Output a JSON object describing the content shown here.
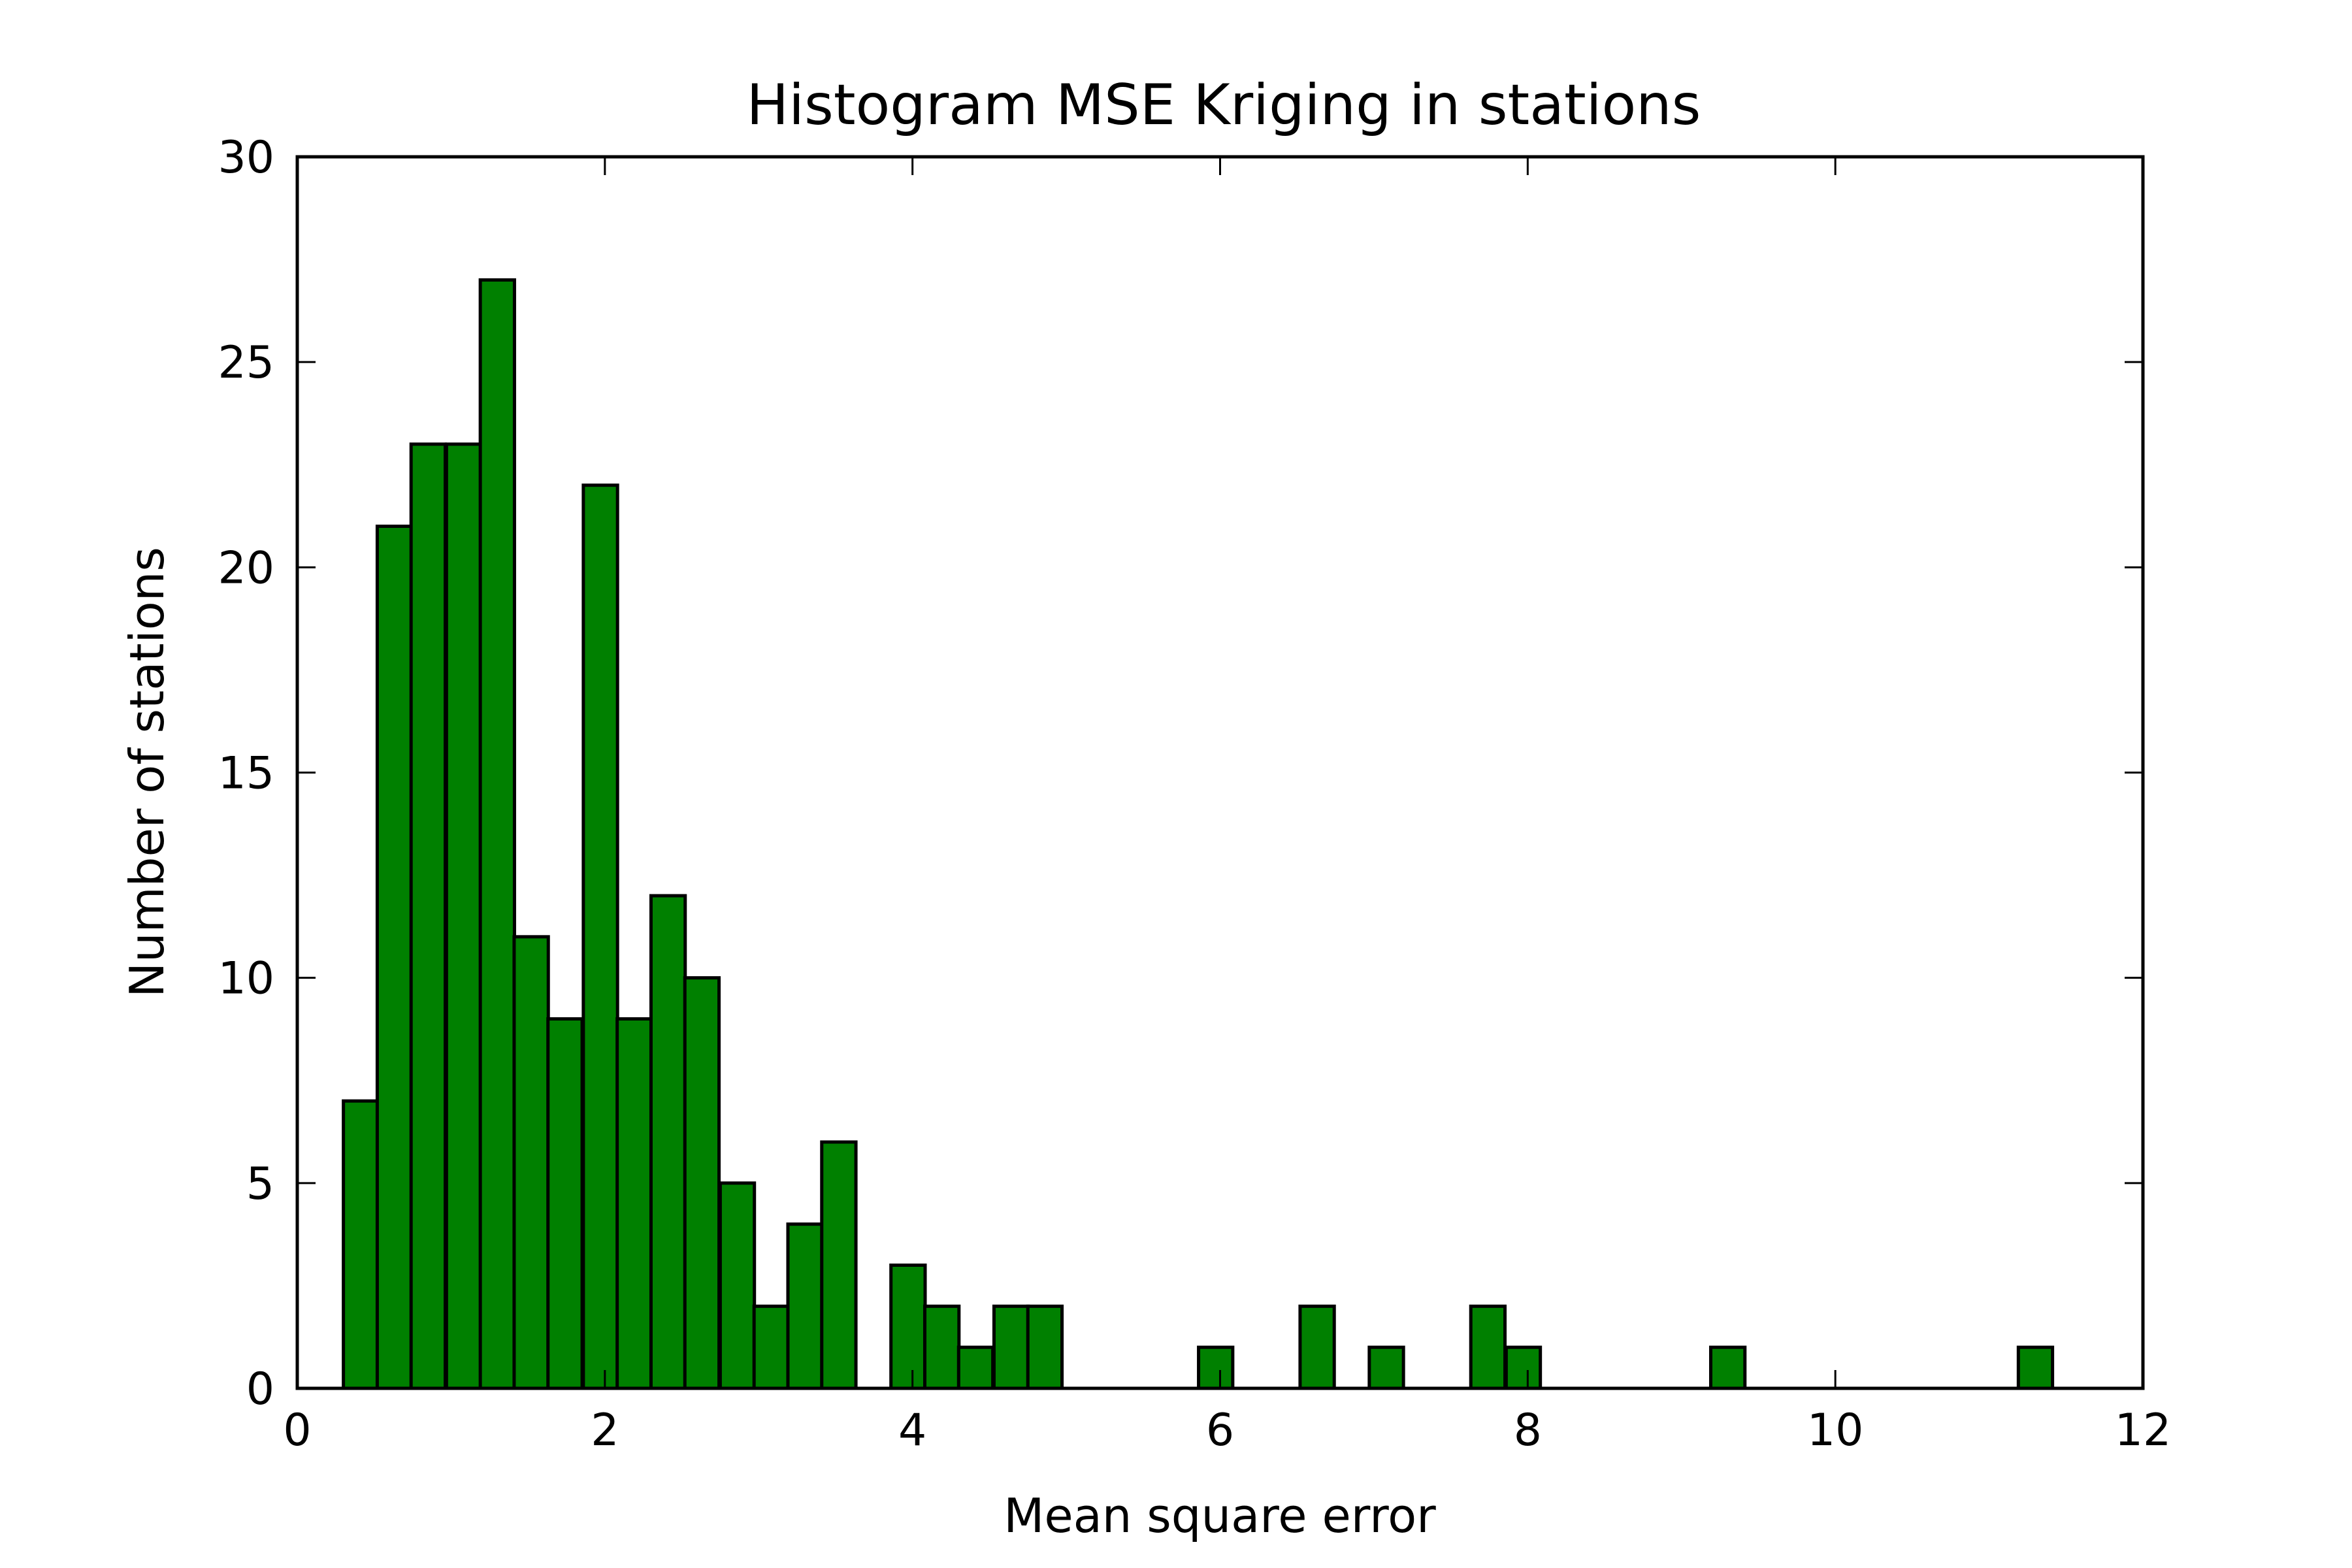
{
  "chart_data": {
    "type": "bar",
    "title": "Histogram MSE Kriging in stations",
    "xlabel": "Mean square error",
    "ylabel": "Number of stations",
    "xlim": [
      0,
      12
    ],
    "ylim": [
      0,
      30
    ],
    "xticks": [
      0,
      2,
      4,
      6,
      8,
      10,
      12
    ],
    "yticks": [
      0,
      5,
      10,
      15,
      20,
      25,
      30
    ],
    "bin_width": 0.2222,
    "bar_color": "#008000",
    "edge_color": "#000000",
    "grid": false,
    "bins": [
      {
        "x": 0.3,
        "value": 7
      },
      {
        "x": 0.52,
        "value": 21
      },
      {
        "x": 0.74,
        "value": 23
      },
      {
        "x": 0.97,
        "value": 23
      },
      {
        "x": 1.19,
        "value": 27
      },
      {
        "x": 1.41,
        "value": 11
      },
      {
        "x": 1.63,
        "value": 9
      },
      {
        "x": 1.86,
        "value": 22
      },
      {
        "x": 2.08,
        "value": 9
      },
      {
        "x": 2.3,
        "value": 12
      },
      {
        "x": 2.52,
        "value": 10
      },
      {
        "x": 2.75,
        "value": 5
      },
      {
        "x": 2.97,
        "value": 2
      },
      {
        "x": 3.19,
        "value": 4
      },
      {
        "x": 3.41,
        "value": 6
      },
      {
        "x": 3.64,
        "value": 0
      },
      {
        "x": 3.86,
        "value": 3
      },
      {
        "x": 4.08,
        "value": 2
      },
      {
        "x": 4.3,
        "value": 1
      },
      {
        "x": 4.53,
        "value": 2
      },
      {
        "x": 4.75,
        "value": 2
      },
      {
        "x": 5.86,
        "value": 1
      },
      {
        "x": 6.52,
        "value": 2
      },
      {
        "x": 6.97,
        "value": 1
      },
      {
        "x": 7.63,
        "value": 2
      },
      {
        "x": 7.86,
        "value": 1
      },
      {
        "x": 9.19,
        "value": 1
      },
      {
        "x": 11.19,
        "value": 1
      }
    ]
  }
}
